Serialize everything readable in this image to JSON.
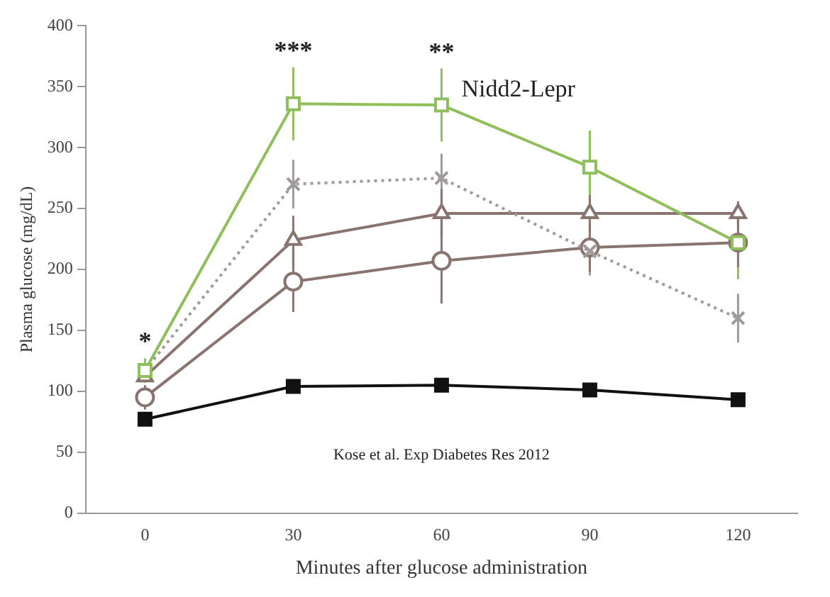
{
  "chart_data": {
    "type": "line",
    "xlabel": "Minutes after glucose administration",
    "ylabel": "Plasma glucose (mg/dL)",
    "xlim": [
      -12,
      132
    ],
    "xticks": [
      0,
      30,
      60,
      90,
      120
    ],
    "ylim": [
      0,
      400
    ],
    "yticks": [
      0,
      50,
      100,
      150,
      200,
      250,
      300,
      350,
      400
    ],
    "grid": false,
    "legend": false,
    "series": [
      {
        "name": "Nidd2-Lepr",
        "color": "#8fbf5a",
        "marker": "square",
        "x": [
          0,
          30,
          60,
          90,
          120
        ],
        "values": [
          117,
          336,
          335,
          284,
          222
        ],
        "errors": [
          10,
          30,
          30,
          30,
          30
        ]
      },
      {
        "color": "#a09a9a",
        "marker": "cross",
        "line_style": "dotted",
        "x": [
          0,
          30,
          60,
          90,
          120
        ],
        "values": [
          117,
          270,
          275,
          215,
          160
        ],
        "errors": [
          null,
          20,
          20,
          20,
          20
        ]
      },
      {
        "color": "#8a7470",
        "marker": "triangle",
        "x": [
          0,
          30,
          60,
          90,
          120
        ],
        "values": [
          112,
          224,
          246,
          246,
          246
        ],
        "errors": [
          null,
          20,
          20,
          15,
          10
        ]
      },
      {
        "color": "#8a7470",
        "marker": "circle",
        "x": [
          0,
          30,
          60,
          90,
          120
        ],
        "values": [
          95,
          190,
          207,
          218,
          222
        ],
        "errors": [
          10,
          25,
          35,
          20,
          20
        ]
      },
      {
        "color": "#111111",
        "marker": "square",
        "x": [
          0,
          30,
          60,
          90,
          120
        ],
        "values": [
          77,
          104,
          105,
          101,
          93
        ],
        "errors": [
          5,
          4,
          4,
          4,
          4
        ]
      }
    ],
    "annotations": [
      "*",
      "***",
      "**",
      "Kose et al. Exp Diabetes Res 2012"
    ]
  }
}
